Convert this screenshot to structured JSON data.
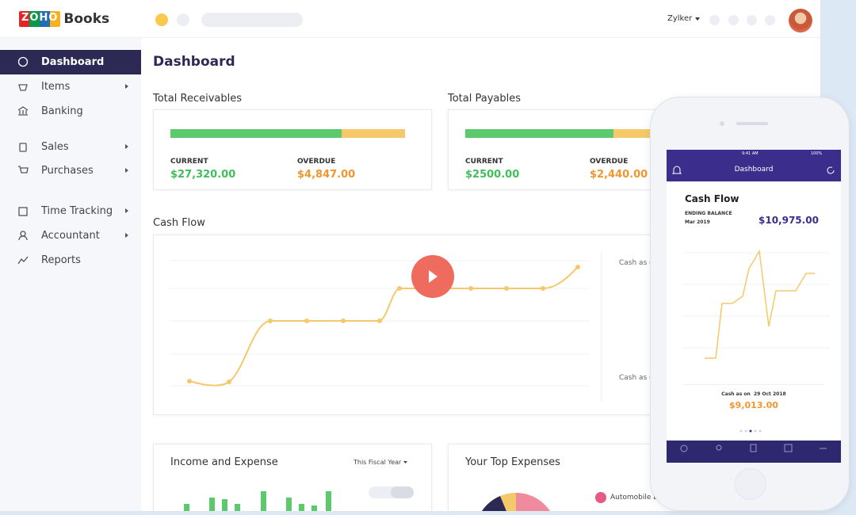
{
  "logo": {
    "brand": "ZOHO",
    "product": "Books"
  },
  "header": {
    "user": "Zylker"
  },
  "sidebar": {
    "items": [
      "Dashboard",
      "Items",
      "Banking",
      "Sales",
      "Purchases",
      "Time Tracking",
      "Accountant",
      "Reports"
    ]
  },
  "page_title": "Dashboard",
  "receivables": {
    "title": "Total Receivables",
    "current_label": "CURRENT",
    "current": "$27,320.00",
    "overdue_label": "OVERDUE",
    "overdue": "$4,847.00"
  },
  "payables": {
    "title": "Total Payables",
    "current_label": "CURRENT",
    "current": "$2500.00",
    "overdue_label": "OVERDUE",
    "overdue": "$2,440.00"
  },
  "cash_flow": {
    "title": "Cash Flow",
    "labels": [
      "Cash as on",
      "Cash as on"
    ]
  },
  "income_expense": {
    "title": "Income and Expense",
    "period": "This Fiscal Year"
  },
  "top_expenses": {
    "title": "Your Top Expenses",
    "legend": [
      "Automobile Expense"
    ]
  },
  "phone": {
    "status_time": "9:41 AM",
    "battery": "100%",
    "header": "Dashboard",
    "title": "Cash Flow",
    "ending_label": "ENDING BALANCE",
    "ending_period": "Mar 2019",
    "ending_value": "$10,975.00",
    "cash_as_on": "Cash as on  29 Oct 2018",
    "cash_value": "$9,013.00"
  }
}
